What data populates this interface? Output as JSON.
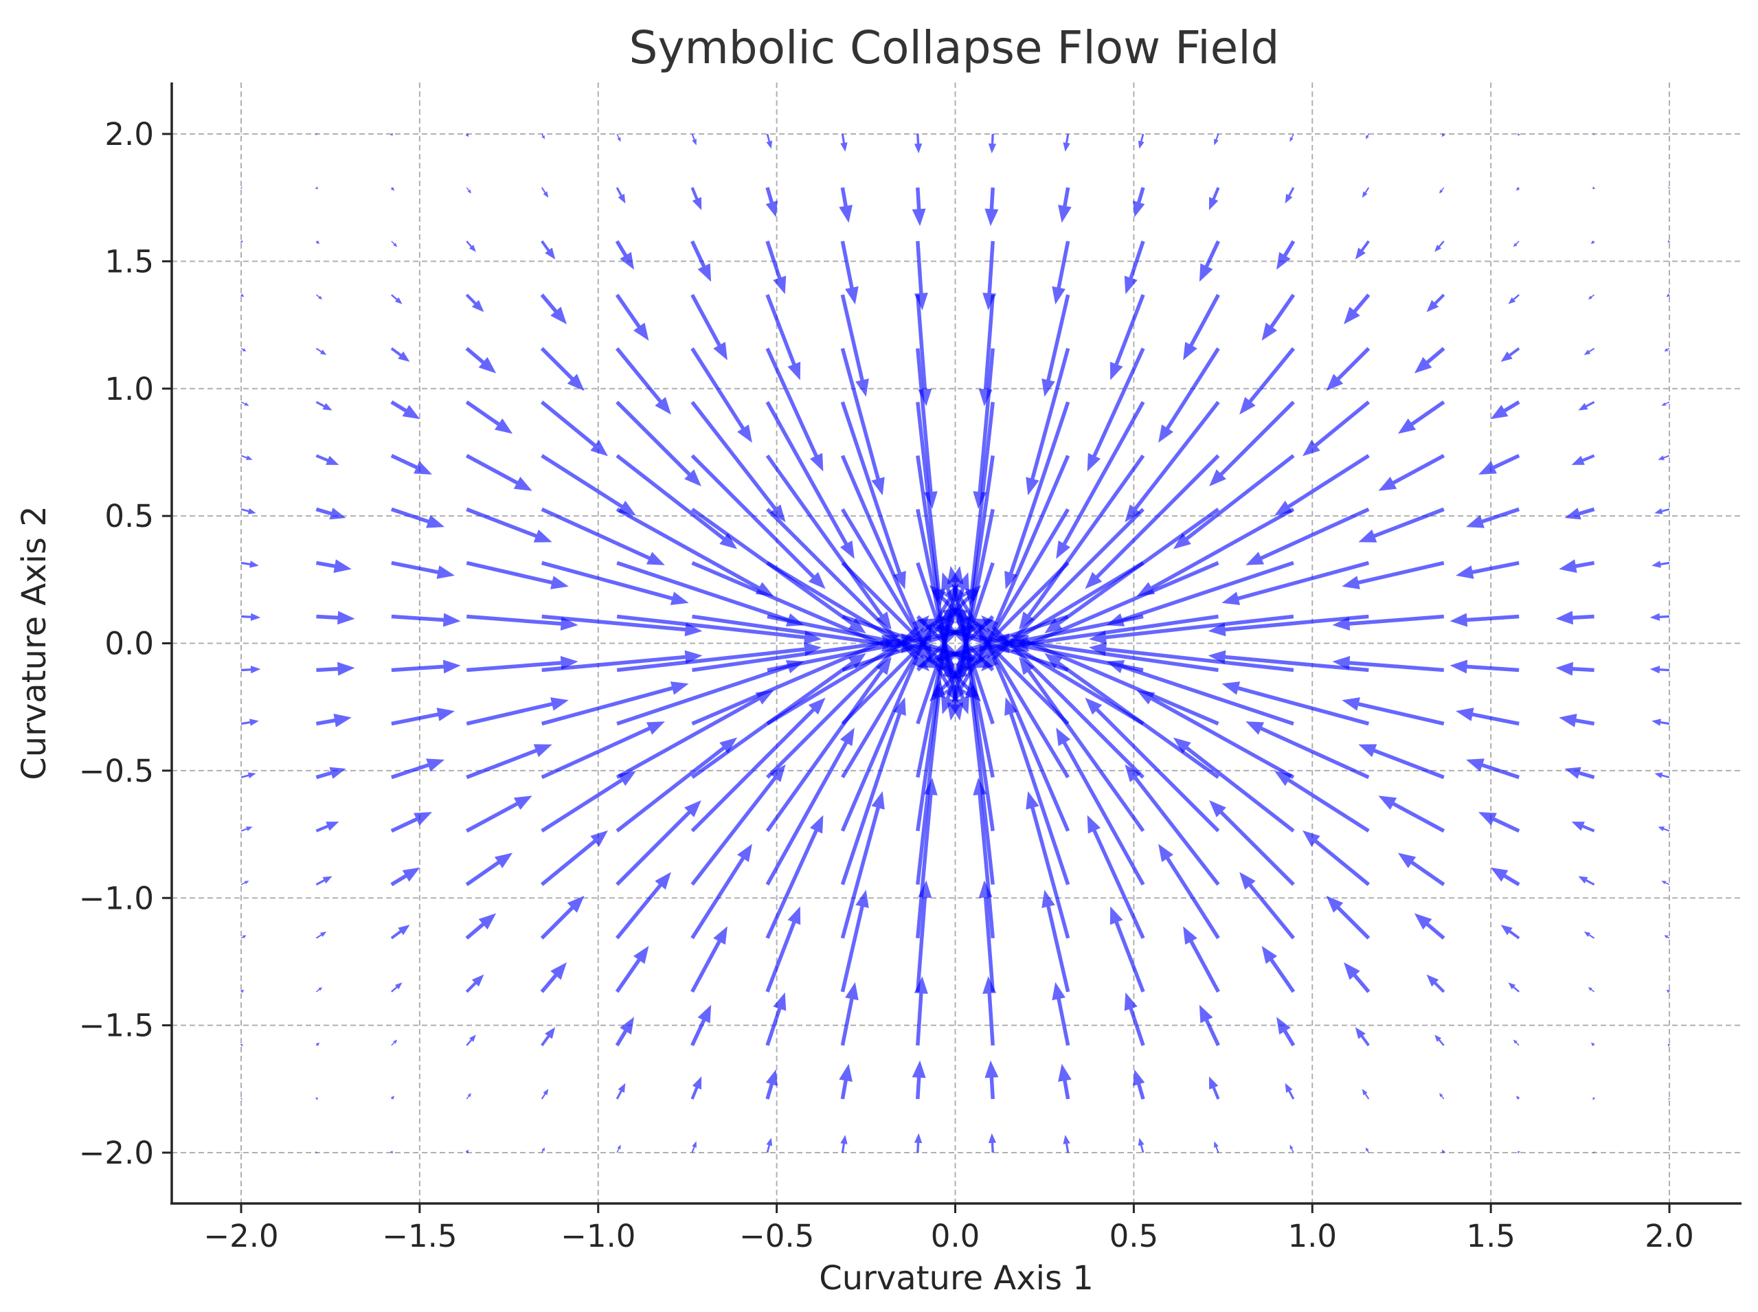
{
  "chart_data": {
    "type": "quiver",
    "title": "Symbolic Collapse Flow Field",
    "xlabel": "Curvature Axis 1",
    "ylabel": "Curvature Axis 2",
    "xlim": [
      -2.2,
      2.2
    ],
    "ylim": [
      -2.2,
      2.2
    ],
    "xticks": [
      -2.0,
      -1.5,
      -1.0,
      -0.5,
      0.0,
      0.5,
      1.0,
      1.5,
      2.0
    ],
    "yticks": [
      -2.0,
      -1.5,
      -1.0,
      -0.5,
      0.0,
      0.5,
      1.0,
      1.5,
      2.0
    ],
    "xtick_labels": [
      "−2.0",
      "−1.5",
      "−1.0",
      "−0.5",
      "0.0",
      "0.5",
      "1.0",
      "1.5",
      "2.0"
    ],
    "ytick_labels": [
      "−2.0",
      "−1.5",
      "−1.0",
      "−0.5",
      "0.0",
      "0.5",
      "1.0",
      "1.5",
      "2.0"
    ],
    "grid": true,
    "grid_style": "dashed",
    "grid_x": {
      "start": -2.0,
      "stop": 2.0,
      "count": 20
    },
    "grid_y": {
      "start": -2.0,
      "stop": 2.0,
      "count": 20
    },
    "vector_field": "u = -x·exp(-(x²+y²)), v = -y·exp(-(x²+y²)) — arrows point toward the origin, magnitude peaking near radius 0.7 and fading toward the edges",
    "arrow_color": "#0000ff",
    "arrow_opacity": 0.6,
    "text_color": "#262626",
    "grid_color": "#b0b0b0"
  }
}
